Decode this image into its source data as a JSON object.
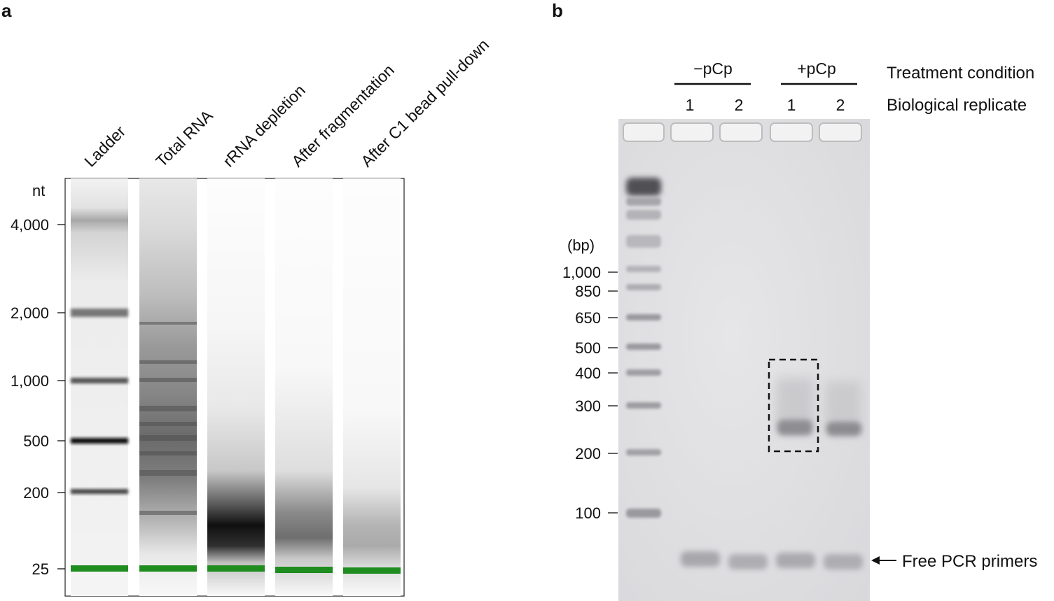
{
  "panel_a": {
    "label": "a",
    "axis_unit": "nt",
    "lanes": [
      "Ladder",
      "Total RNA",
      "rRNA depletion",
      "After fragmentation",
      "After C1 bead pull-down"
    ],
    "ticks": [
      "4,000",
      "2,000",
      "1,000",
      "500",
      "200",
      "25"
    ],
    "marker_color": "#1e8c1e"
  },
  "panel_b": {
    "label": "b",
    "axis_unit": "(bp)",
    "groups": [
      "−pCp",
      "+pCp"
    ],
    "replicates": [
      "1",
      "2",
      "1",
      "2"
    ],
    "row_labels": {
      "treatment": "Treatment condition",
      "replicate": "Biological replicate"
    },
    "ticks": [
      "1,000",
      "850",
      "650",
      "500",
      "400",
      "300",
      "200",
      "100"
    ],
    "annotation": "Free PCR primers"
  }
}
